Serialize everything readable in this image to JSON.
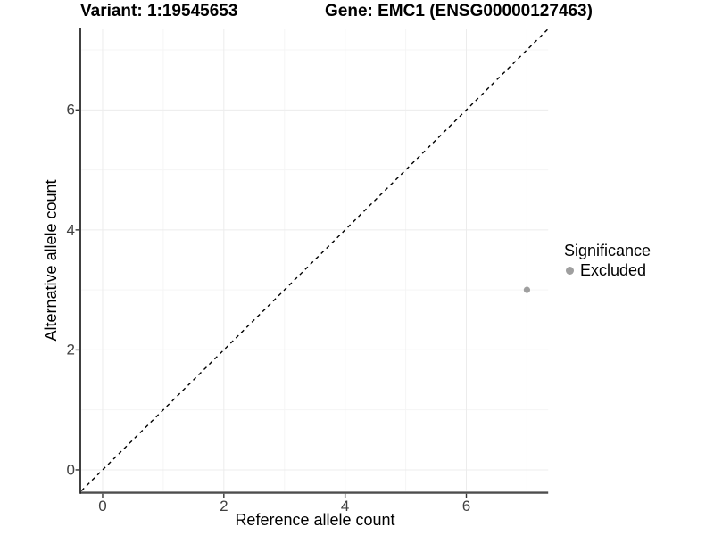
{
  "titles": {
    "variant": "Variant: 1:19545653",
    "gene": "Gene: EMC1 (ENSG00000127463)"
  },
  "axes": {
    "x_label": "Reference allele count",
    "y_label": "Alternative allele count"
  },
  "legend": {
    "title": "Significance",
    "items": [
      {
        "label": "Excluded",
        "color": "#9f9f9f"
      }
    ]
  },
  "chart_data": {
    "type": "scatter",
    "title": "Variant: 1:19545653 | Gene: EMC1 (ENSG00000127463)",
    "xlabel": "Reference allele count",
    "ylabel": "Alternative allele count",
    "xlim": [
      -0.35,
      7.35
    ],
    "ylim": [
      -0.35,
      7.35
    ],
    "x_ticks": [
      0,
      2,
      4,
      6
    ],
    "x_tick_labels": [
      "0",
      "2",
      "4",
      "6"
    ],
    "y_ticks": [
      0,
      2,
      4,
      6
    ],
    "y_tick_labels": [
      "0",
      "2",
      "4",
      "6"
    ],
    "minor_ticks": [
      1,
      3,
      5,
      7
    ],
    "grid": "on",
    "legend_position": "right",
    "series": [
      {
        "name": "Excluded",
        "color": "#9f9f9f",
        "points": [
          {
            "x": 7,
            "y": 3
          }
        ]
      }
    ],
    "reference_line": {
      "type": "identity y = x",
      "slope": 1,
      "intercept": 0,
      "style": "dashed",
      "color": "#000000"
    },
    "colors": {
      "background": "#ffffff",
      "grid_major": "#ececec",
      "grid_minor": "#f5f5f5",
      "axis_line_left": "#1f1f1f",
      "axis_line_bottom": "#4d4d4d",
      "tick_mark": "#333333",
      "tick_label": "#404040",
      "point": "#9f9f9f"
    }
  }
}
